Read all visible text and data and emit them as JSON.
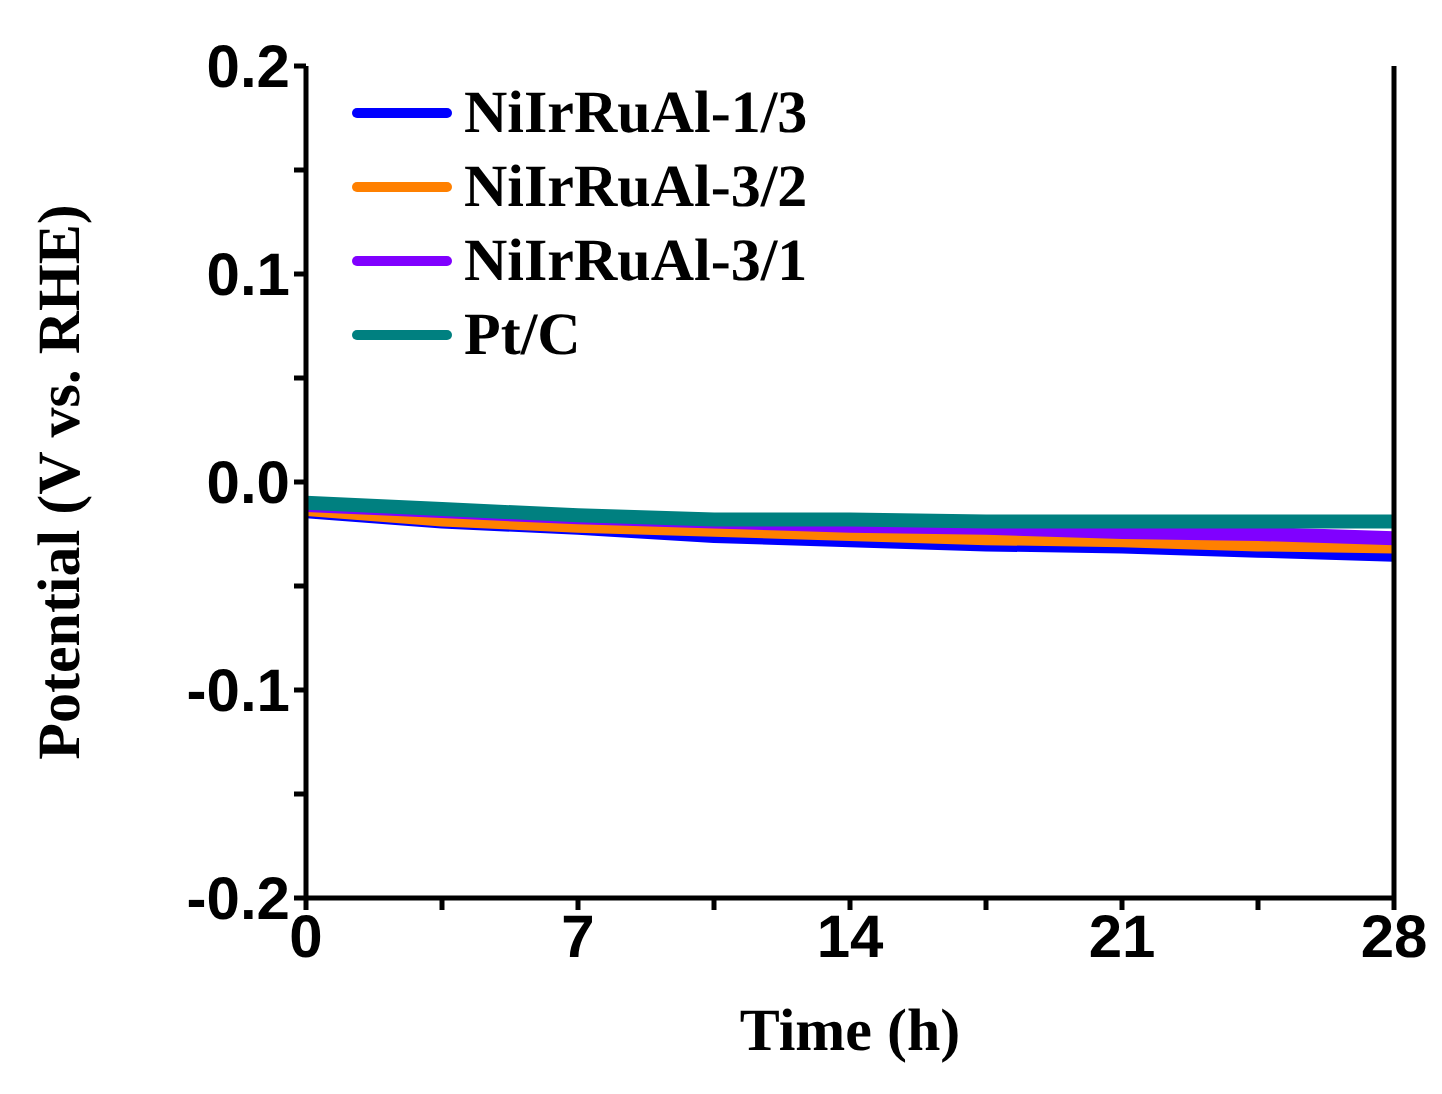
{
  "chart_data": {
    "type": "line",
    "xlabel": "Time (h)",
    "ylabel": "Potential (V vs. RHE)",
    "x": [
      0,
      3.5,
      7,
      10.5,
      14,
      17.5,
      21,
      24.5,
      28
    ],
    "series": [
      {
        "name": "NiIrRuAl-1/3",
        "color": "#0000ff",
        "values": [
          -0.014,
          -0.019,
          -0.022,
          -0.026,
          -0.028,
          -0.03,
          -0.031,
          -0.033,
          -0.035
        ]
      },
      {
        "name": "NiIrRuAl-3/2",
        "color": "#ff8000",
        "values": [
          -0.013,
          -0.018,
          -0.021,
          -0.023,
          -0.025,
          -0.027,
          -0.028,
          -0.03,
          -0.031
        ]
      },
      {
        "name": "NiIrRuAl-3/1",
        "color": "#8000ff",
        "values": [
          -0.011,
          -0.014,
          -0.017,
          -0.019,
          -0.021,
          -0.022,
          -0.024,
          -0.025,
          -0.027
        ]
      },
      {
        "name": "Pt/C",
        "color": "#008080",
        "values": [
          -0.01,
          -0.013,
          -0.016,
          -0.018,
          -0.018,
          -0.019,
          -0.019,
          -0.019,
          -0.019
        ]
      }
    ],
    "xlim": [
      0,
      28
    ],
    "xticks": [
      0,
      {
        "value": 3.5,
        "label": null
      },
      7,
      {
        "value": 10.5,
        "label": null
      },
      14,
      {
        "value": 17.5,
        "label": null
      },
      21,
      {
        "value": 24.5,
        "label": null
      },
      28
    ],
    "ylim": [
      -0.2,
      0.2
    ],
    "yticks": [
      {
        "value": -0.2,
        "label": "-0.2"
      },
      {
        "value": -0.15,
        "label": null
      },
      {
        "value": -0.1,
        "label": "-0.1"
      },
      {
        "value": -0.05,
        "label": null
      },
      {
        "value": 0,
        "label": "0.0"
      },
      {
        "value": 0.05,
        "label": null
      },
      {
        "value": 0.1,
        "label": "0.1"
      },
      {
        "value": 0.15,
        "label": null
      },
      {
        "value": 0.2,
        "label": "0.2"
      }
    ],
    "grid": false,
    "legend": "top left",
    "marker": "none",
    "line_style": "solid"
  }
}
